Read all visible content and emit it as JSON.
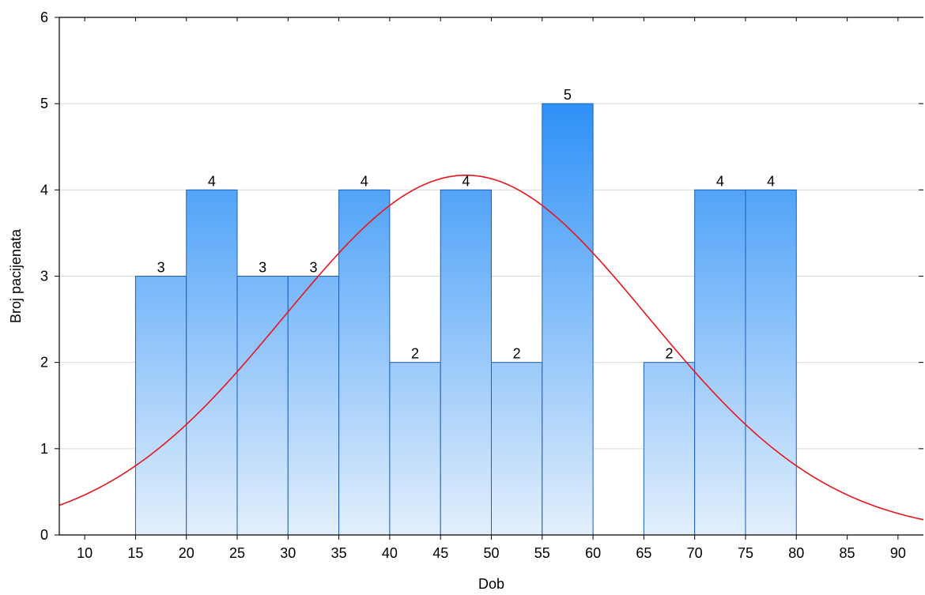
{
  "chart_data": {
    "type": "bar",
    "subtype": "histogram",
    "xlabel": "Dob",
    "ylabel": "Broj pacijenata",
    "xlim": [
      7.5,
      92.5
    ],
    "ylim": [
      0,
      6
    ],
    "x_ticks": [
      10,
      15,
      20,
      25,
      30,
      35,
      40,
      45,
      50,
      55,
      60,
      65,
      70,
      75,
      80,
      85,
      90
    ],
    "y_ticks": [
      0,
      1,
      2,
      3,
      4,
      5,
      6
    ],
    "bins": [
      {
        "start": 15,
        "end": 20,
        "value": 3
      },
      {
        "start": 20,
        "end": 25,
        "value": 4
      },
      {
        "start": 25,
        "end": 30,
        "value": 3
      },
      {
        "start": 30,
        "end": 35,
        "value": 3
      },
      {
        "start": 35,
        "end": 40,
        "value": 4
      },
      {
        "start": 40,
        "end": 45,
        "value": 2
      },
      {
        "start": 45,
        "end": 50,
        "value": 4
      },
      {
        "start": 50,
        "end": 55,
        "value": 2
      },
      {
        "start": 55,
        "end": 60,
        "value": 5
      },
      {
        "start": 65,
        "end": 70,
        "value": 2
      },
      {
        "start": 70,
        "end": 75,
        "value": 4
      },
      {
        "start": 75,
        "end": 80,
        "value": 4
      }
    ],
    "normal_curve": {
      "mean": 47.5,
      "sd": 17.9,
      "peak": 4.17
    },
    "grid": "horizontal",
    "colors": {
      "bar_top": "#2a8ff7",
      "bar_bottom": "#e3effc",
      "bar_edge": "#1f5fb5",
      "curve": "#e8141e",
      "grid": "#d9d9d9",
      "axis": "#000000"
    }
  }
}
